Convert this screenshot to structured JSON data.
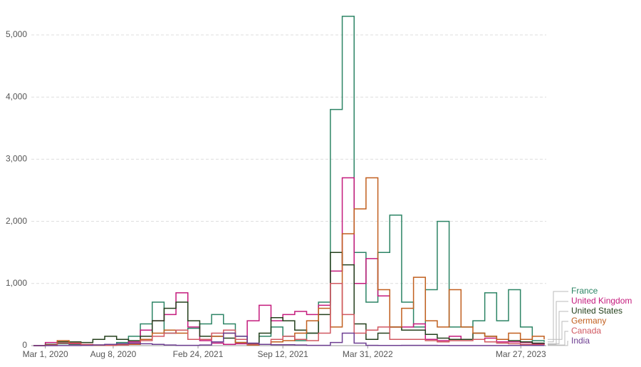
{
  "chart_data": {
    "type": "line",
    "step": true,
    "grid": true,
    "xlim": [
      "2020-01-28",
      "2023-05-26"
    ],
    "ylim": [
      0,
      5000
    ],
    "yticks": [
      0,
      {
        "value": 1000,
        "label": "1,000"
      },
      {
        "value": 2000,
        "label": "2,000"
      },
      {
        "value": 3000,
        "label": "3,000"
      },
      {
        "value": 4000,
        "label": "4,000"
      },
      {
        "value": 5000,
        "label": "5,000"
      }
    ],
    "xticks": [
      {
        "value": "2020-03-01",
        "label": "Mar 1, 2020"
      },
      {
        "value": "2020-08-08",
        "label": "Aug 8, 2020"
      },
      {
        "value": "2021-02-24",
        "label": "Feb 24, 2021"
      },
      {
        "value": "2021-09-12",
        "label": "Sep 12, 2021"
      },
      {
        "value": "2022-03-31",
        "label": "Mar 31, 2022"
      },
      {
        "value": "2023-03-27",
        "label": "Mar 27, 2023"
      }
    ],
    "x": [
      "2020-02-02",
      "2020-03-01",
      "2020-03-29",
      "2020-04-26",
      "2020-05-24",
      "2020-06-21",
      "2020-07-19",
      "2020-08-16",
      "2020-09-13",
      "2020-10-11",
      "2020-11-08",
      "2020-12-06",
      "2021-01-03",
      "2021-01-31",
      "2021-02-28",
      "2021-03-28",
      "2021-04-25",
      "2021-05-23",
      "2021-06-20",
      "2021-07-18",
      "2021-08-15",
      "2021-09-12",
      "2021-10-10",
      "2021-11-07",
      "2021-12-05",
      "2022-01-02",
      "2022-01-30",
      "2022-02-27",
      "2022-03-27",
      "2022-04-24",
      "2022-05-22",
      "2022-06-19",
      "2022-07-17",
      "2022-08-14",
      "2022-09-11",
      "2022-10-09",
      "2022-11-06",
      "2022-12-04",
      "2023-01-01",
      "2023-01-29",
      "2023-02-26",
      "2023-03-26",
      "2023-04-23",
      "2023-05-21"
    ],
    "series": [
      {
        "name": "France",
        "color": "#2c8465",
        "values": [
          0,
          5,
          30,
          20,
          10,
          10,
          20,
          50,
          150,
          350,
          700,
          200,
          250,
          280,
          350,
          500,
          350,
          150,
          30,
          150,
          300,
          150,
          80,
          200,
          700,
          3800,
          5300,
          1500,
          700,
          1500,
          2100,
          700,
          300,
          900,
          2000,
          300,
          300,
          400,
          850,
          400,
          900,
          300,
          80,
          60
        ]
      },
      {
        "name": "United Kingdom",
        "color": "#c41a7c",
        "values": [
          0,
          50,
          60,
          30,
          10,
          10,
          10,
          20,
          60,
          250,
          400,
          500,
          850,
          300,
          80,
          40,
          20,
          30,
          400,
          650,
          400,
          500,
          550,
          500,
          650,
          1200,
          2700,
          1000,
          1400,
          800,
          300,
          300,
          350,
          100,
          80,
          150,
          100,
          100,
          120,
          60,
          60,
          50,
          30,
          20
        ]
      },
      {
        "name": "United States",
        "color": "#24401c",
        "values": [
          0,
          20,
          60,
          60,
          50,
          100,
          150,
          100,
          80,
          150,
          400,
          600,
          700,
          400,
          150,
          150,
          120,
          50,
          30,
          200,
          450,
          400,
          250,
          200,
          500,
          1500,
          1300,
          350,
          100,
          200,
          300,
          250,
          250,
          180,
          120,
          100,
          100,
          200,
          150,
          100,
          80,
          60,
          40,
          30
        ]
      },
      {
        "name": "Germany",
        "color": "#c15f1e",
        "values": [
          0,
          10,
          80,
          40,
          5,
          5,
          5,
          15,
          20,
          100,
          200,
          250,
          200,
          100,
          100,
          150,
          200,
          50,
          10,
          20,
          60,
          80,
          200,
          400,
          600,
          300,
          1800,
          2200,
          2700,
          900,
          300,
          600,
          1100,
          400,
          300,
          900,
          300,
          200,
          150,
          100,
          200,
          100,
          150,
          100
        ]
      },
      {
        "name": "Canada",
        "color": "#d05860",
        "values": [
          0,
          10,
          40,
          40,
          20,
          10,
          5,
          10,
          30,
          80,
          150,
          200,
          250,
          100,
          100,
          200,
          250,
          100,
          20,
          20,
          100,
          150,
          100,
          80,
          200,
          1000,
          500,
          200,
          250,
          300,
          100,
          100,
          100,
          80,
          60,
          80,
          80,
          100,
          60,
          40,
          30,
          20,
          15,
          10
        ]
      },
      {
        "name": "India",
        "color": "#6d3e91",
        "values": [
          0,
          0,
          1,
          2,
          5,
          10,
          20,
          30,
          40,
          30,
          20,
          10,
          5,
          5,
          10,
          60,
          200,
          150,
          40,
          20,
          15,
          15,
          10,
          5,
          5,
          50,
          200,
          40,
          5,
          3,
          3,
          5,
          5,
          4,
          3,
          2,
          2,
          2,
          2,
          2,
          3,
          4,
          3,
          2
        ]
      }
    ]
  }
}
